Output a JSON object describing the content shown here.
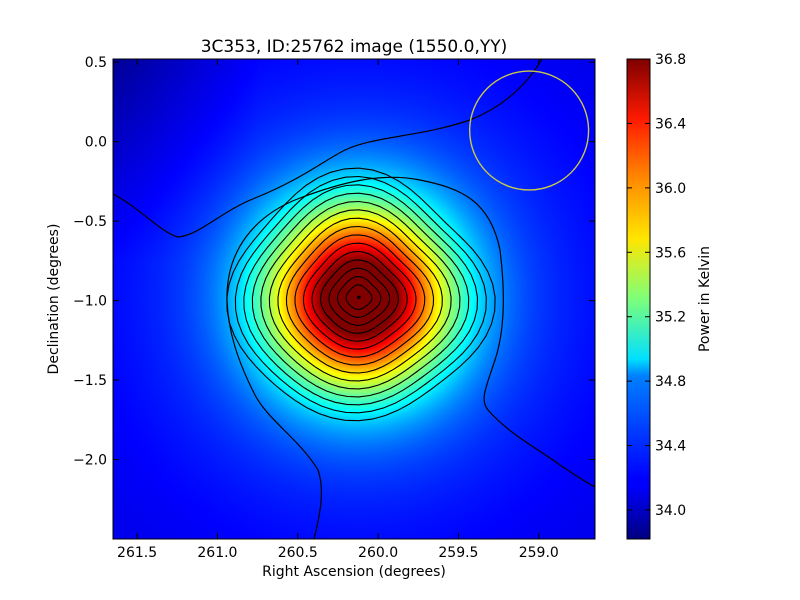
{
  "chart_data": {
    "type": "heatmap",
    "title": "3C353, ID:25762 image (1550.0,YY)",
    "xlabel": "Right Ascension (degrees)",
    "ylabel": "Declination (degrees)",
    "xlim": [
      261.65,
      258.65
    ],
    "ylim": [
      -2.5,
      0.52
    ],
    "x_ticks": [
      "261.5",
      "261.0",
      "260.5",
      "260.0",
      "259.5",
      "259.0"
    ],
    "x_tick_values": [
      261.5,
      261.0,
      260.5,
      260.0,
      259.5,
      259.0
    ],
    "y_ticks": [
      "0.5",
      "0.0",
      "−0.5",
      "−1.0",
      "−1.5",
      "−2.0"
    ],
    "y_tick_values": [
      0.5,
      0.0,
      -0.5,
      -1.0,
      -1.5,
      -2.0
    ],
    "colorbar": {
      "label": "Power in Kelvin",
      "vmin": 33.82,
      "vmax": 36.8,
      "ticks": [
        "34.0",
        "34.4",
        "34.8",
        "35.2",
        "35.6",
        "36.0",
        "36.4",
        "36.8"
      ],
      "tick_values": [
        34.0,
        34.4,
        34.8,
        35.2,
        35.6,
        36.0,
        36.4,
        36.8
      ],
      "colormap": "jet"
    },
    "source": {
      "ra": 260.12,
      "dec": -0.98,
      "peak": 36.8,
      "background": 34.1
    },
    "circle_marker": {
      "ra": 259.06,
      "dec": 0.07,
      "radius_deg": 0.37,
      "color": "#c8c84a"
    },
    "contour_count": 15
  }
}
